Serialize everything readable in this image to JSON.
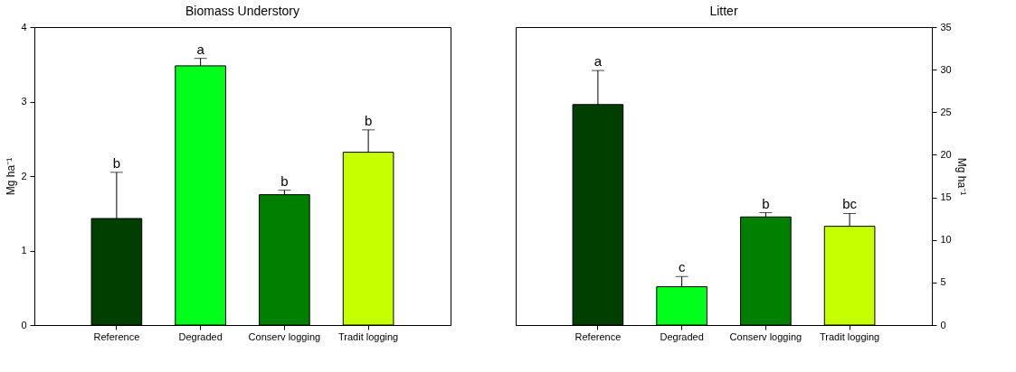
{
  "chart_data": [
    {
      "type": "bar",
      "title": "Biomass Understory",
      "ylabel": "Mg ha⁻¹",
      "categories": [
        "Reference",
        "Degraded",
        "Conserv logging",
        "Tradit logging"
      ],
      "series": [
        {
          "values": [
            1.43,
            3.48,
            1.75,
            2.32
          ],
          "colors": [
            "#003f00",
            "#00ff1a",
            "#007f00",
            "#c6ff00"
          ],
          "errors": [
            [
              1.43,
              2.05
            ],
            [
              3.48,
              3.58
            ],
            [
              1.75,
              1.81
            ],
            [
              2.32,
              2.62
            ]
          ]
        }
      ],
      "ylim": [
        0,
        4
      ],
      "yticks": [
        0,
        1,
        2,
        3,
        4
      ],
      "grid": false,
      "annotations": [
        {
          "text": "b",
          "x": "Reference",
          "y": 2.05
        },
        {
          "text": "a",
          "x": "Degraded",
          "y": 3.58
        },
        {
          "text": "b",
          "x": "Conserv logging",
          "y": 1.81
        },
        {
          "text": "b",
          "x": "Tradit logging",
          "y": 2.62
        }
      ]
    },
    {
      "type": "bar",
      "title": "Litter",
      "ylabel": "Mg ha⁻¹",
      "categories": [
        "Reference",
        "Degraded",
        "Conserv logging",
        "Tradit logging"
      ],
      "series": [
        {
          "values": [
            25.9,
            4.5,
            12.7,
            11.6
          ],
          "colors": [
            "#003f00",
            "#00ff1a",
            "#007f00",
            "#c6ff00"
          ],
          "errors": [
            [
              25.9,
              29.9
            ],
            [
              4.5,
              5.7
            ],
            [
              12.7,
              13.2
            ],
            [
              11.6,
              13.1
            ]
          ]
        }
      ],
      "ylim": [
        0,
        35
      ],
      "yticks": [
        0,
        5,
        10,
        15,
        20,
        25,
        30,
        35
      ],
      "grid": false,
      "annotations": [
        {
          "text": "a",
          "x": "Reference",
          "y": 29.9
        },
        {
          "text": "c",
          "x": "Degraded",
          "y": 5.7
        },
        {
          "text": "b",
          "x": "Conserv logging",
          "y": 13.2
        },
        {
          "text": "bc",
          "x": "Tradit logging",
          "y": 13.1
        }
      ]
    }
  ]
}
